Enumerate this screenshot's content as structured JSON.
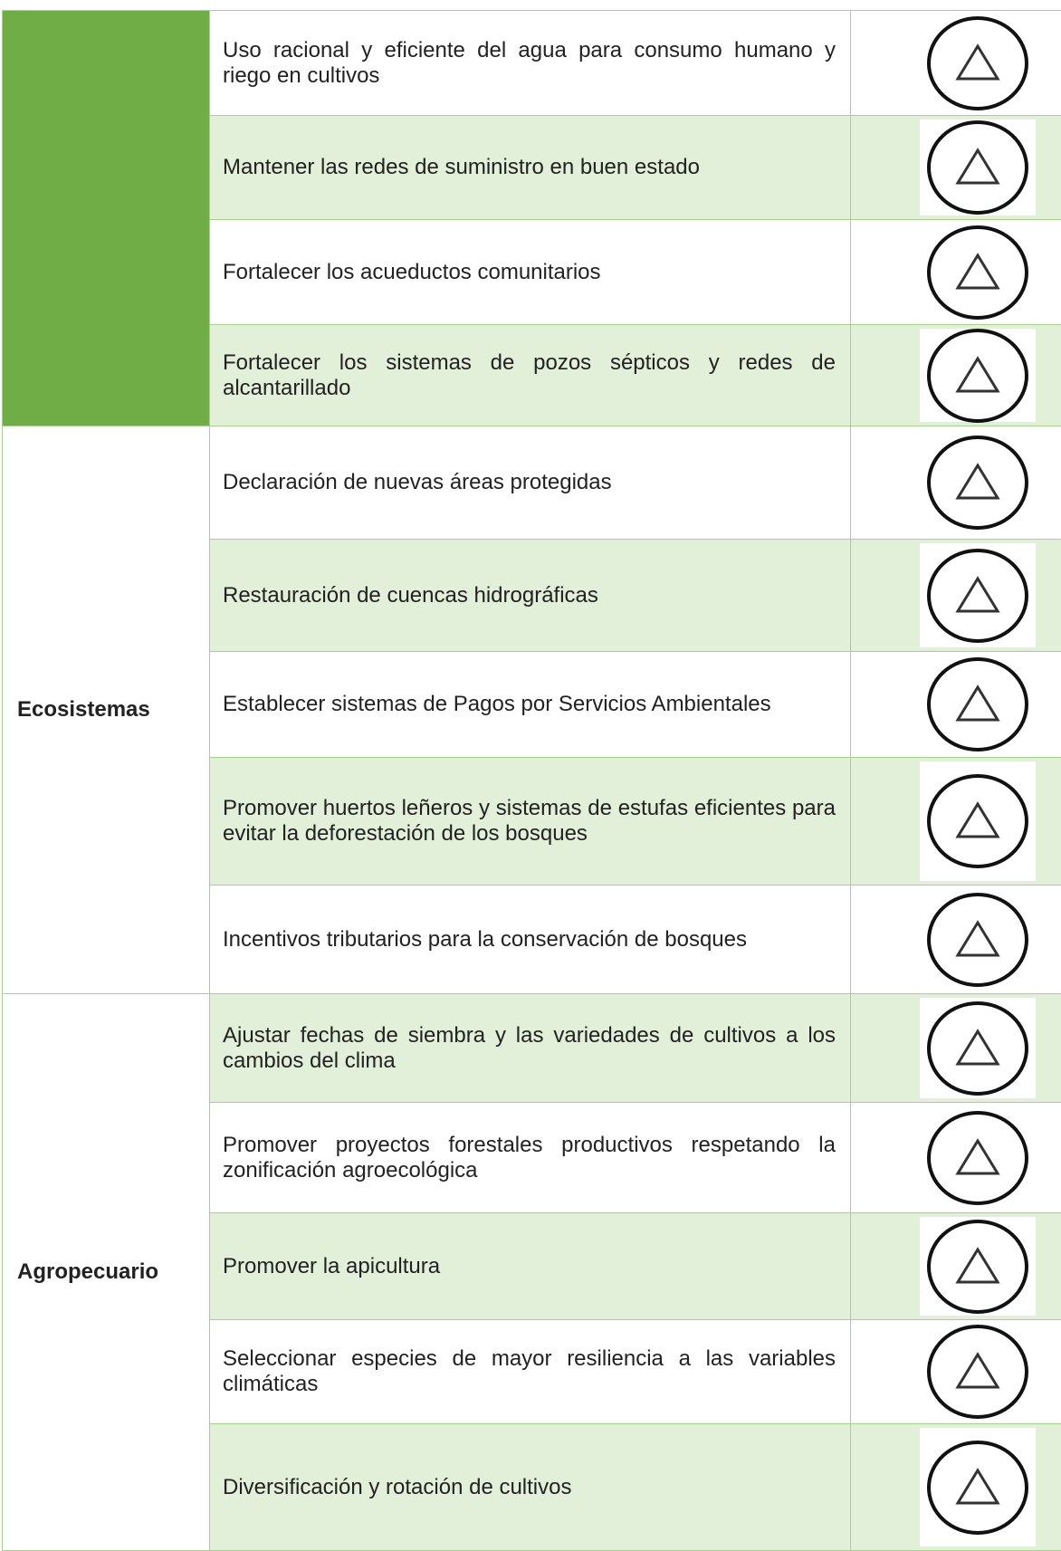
{
  "table": {
    "groups": [
      {
        "rows": [
          "Uso racional y eficiente del agua para consumo humano y riego en cultivos",
          "Mantener las redes de suministro en buen estado",
          "Fortalecer los acueductos comunitarios",
          "Fortalecer los sistemas de pozos sépticos y redes de alcantarillado"
        ]
      },
      {
        "label": "Ecosistemas",
        "rows": [
          "Declaración de nuevas áreas protegidas",
          "Restauración de cuencas hidrográficas",
          "Establecer sistemas de Pagos por Servicios Ambientales",
          "Promover huertos leñeros y sistemas de estufas eficientes para evitar la deforestación de los bosques",
          "Incentivos tributarios para la conservación de bosques"
        ]
      },
      {
        "label": "Agropecuario",
        "rows": [
          "Ajustar fechas de siembra y las variedades de cultivos a los cambios del clima",
          "Promover proyectos forestales productivos respetando la zonificación agroecológica",
          "Promover la apicultura",
          "Seleccionar especies de mayor resiliencia a las variables climáticas",
          "Diversificación y rotación de cultivos"
        ]
      }
    ]
  }
}
